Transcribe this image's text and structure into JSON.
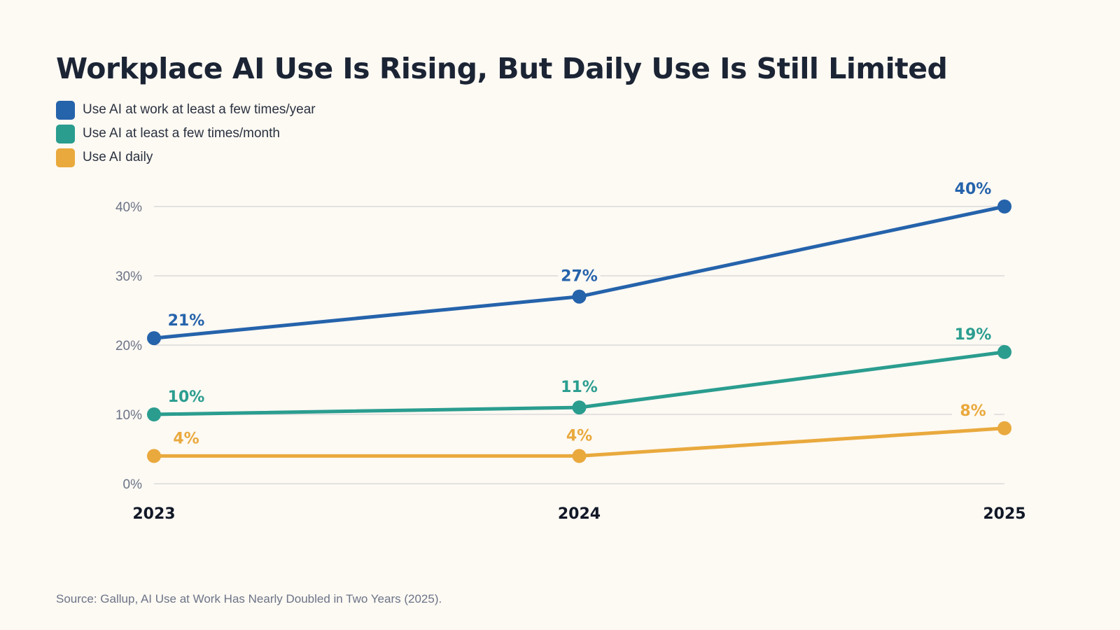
{
  "colors": {
    "background": "#fdf9f3",
    "title": "#1b2434",
    "grid": "#d4d4d4",
    "tick": "#6b7487",
    "xtick": "#111827",
    "source": "#6b7487"
  },
  "chart_data": {
    "type": "line",
    "title": "Workplace AI Use Is Rising, But Daily Use Is Still Limited",
    "x": [
      "2023",
      "2024",
      "2025"
    ],
    "ylim": [
      0,
      40
    ],
    "yticks": [
      "0%",
      "10%",
      "20%",
      "30%",
      "40%"
    ],
    "ytick_values": [
      0,
      10,
      20,
      30,
      40
    ],
    "grid": true,
    "legend_position": "top-left",
    "series": [
      {
        "name": "Use AI at work at least a few times/year",
        "color": "#2563ab",
        "values": [
          21,
          27,
          40
        ],
        "labels": [
          "21%",
          "27%",
          "40%"
        ]
      },
      {
        "name": "Use AI at least a few times/month",
        "color": "#2a9d8f",
        "values": [
          10,
          11,
          19
        ],
        "labels": [
          "10%",
          "11%",
          "19%"
        ]
      },
      {
        "name": "Use AI daily",
        "color": "#e9a93d",
        "values": [
          4,
          4,
          8
        ],
        "labels": [
          "4%",
          "4%",
          "8%"
        ]
      }
    ],
    "source": "Source: Gallup, AI Use at Work Has Nearly Doubled in Two Years (2025)."
  }
}
